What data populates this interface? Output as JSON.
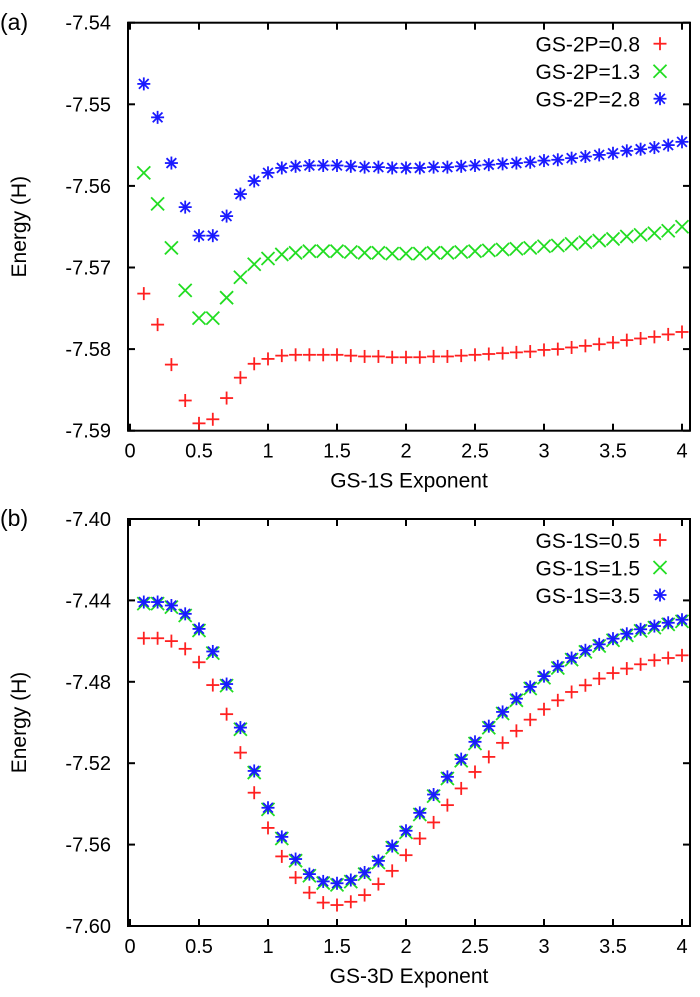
{
  "chart_data": [
    {
      "panel_label": "(a)",
      "type": "scatter",
      "xlabel": "GS-1S Exponent",
      "ylabel": "Energy (H)",
      "xlim": [
        0,
        4.05
      ],
      "ylim": [
        -7.59,
        -7.54
      ],
      "xticks": [
        "0",
        "0.5",
        "1",
        "1.5",
        "2",
        "2.5",
        "3",
        "3.5",
        "4"
      ],
      "xtick_values": [
        0,
        0.5,
        1,
        1.5,
        2,
        2.5,
        3,
        3.5,
        4
      ],
      "yticks": [
        "-7.54",
        "-7.55",
        "-7.56",
        "-7.57",
        "-7.58",
        "-7.59"
      ],
      "ytick_values": [
        -7.54,
        -7.55,
        -7.56,
        -7.57,
        -7.58,
        -7.59
      ],
      "grid": false,
      "legend_position": "top-right",
      "x": [
        0.1,
        0.2,
        0.3,
        0.4,
        0.5,
        0.6,
        0.7,
        0.8,
        0.9,
        1.0,
        1.1,
        1.2,
        1.3,
        1.4,
        1.5,
        1.6,
        1.7,
        1.8,
        1.9,
        2.0,
        2.1,
        2.2,
        2.3,
        2.4,
        2.5,
        2.6,
        2.7,
        2.8,
        2.9,
        3.0,
        3.1,
        3.2,
        3.3,
        3.4,
        3.5,
        3.6,
        3.7,
        3.8,
        3.9,
        4.0
      ],
      "series": [
        {
          "name": "GS-2P=0.8",
          "marker": "plus",
          "color": "#ff2020",
          "values": [
            -7.5732,
            -7.577,
            -7.5819,
            -7.5863,
            -7.5891,
            -7.5886,
            -7.586,
            -7.5835,
            -7.5818,
            -7.5812,
            -7.5808,
            -7.5807,
            -7.5807,
            -7.5807,
            -7.5807,
            -7.5808,
            -7.5809,
            -7.5809,
            -7.581,
            -7.581,
            -7.581,
            -7.5809,
            -7.5809,
            -7.5808,
            -7.5807,
            -7.5806,
            -7.5805,
            -7.5804,
            -7.5803,
            -7.5801,
            -7.58,
            -7.5798,
            -7.5796,
            -7.5794,
            -7.5792,
            -7.5789,
            -7.5787,
            -7.5785,
            -7.5782,
            -7.5779
          ]
        },
        {
          "name": "GS-2P=1.3",
          "marker": "cross",
          "color": "#22dd22",
          "values": [
            -7.5584,
            -7.5622,
            -7.5676,
            -7.5728,
            -7.5762,
            -7.5762,
            -7.5737,
            -7.5712,
            -7.5696,
            -7.5689,
            -7.5684,
            -7.5682,
            -7.568,
            -7.568,
            -7.568,
            -7.5681,
            -7.5682,
            -7.5682,
            -7.5683,
            -7.5683,
            -7.5683,
            -7.5682,
            -7.5682,
            -7.5681,
            -7.568,
            -7.5679,
            -7.5678,
            -7.5677,
            -7.5676,
            -7.5674,
            -7.5673,
            -7.5671,
            -7.5669,
            -7.5667,
            -7.5665,
            -7.5662,
            -7.566,
            -7.5658,
            -7.5655,
            -7.565
          ]
        },
        {
          "name": "GS-2P=2.8",
          "marker": "star",
          "color": "#1a1aff",
          "values": [
            -7.5475,
            -7.5516,
            -7.5572,
            -7.5626,
            -7.5661,
            -7.5661,
            -7.5637,
            -7.561,
            -7.5594,
            -7.5584,
            -7.5578,
            -7.5576,
            -7.5575,
            -7.5575,
            -7.5575,
            -7.5576,
            -7.5577,
            -7.5577,
            -7.5578,
            -7.5578,
            -7.5578,
            -7.5577,
            -7.5577,
            -7.5576,
            -7.5575,
            -7.5574,
            -7.5573,
            -7.5572,
            -7.5571,
            -7.5569,
            -7.5568,
            -7.5566,
            -7.5564,
            -7.5562,
            -7.556,
            -7.5557,
            -7.5555,
            -7.5553,
            -7.555,
            -7.5546
          ]
        }
      ]
    },
    {
      "panel_label": "(b)",
      "type": "scatter",
      "xlabel": "GS-3D Exponent",
      "ylabel": "Energy (H)",
      "xlim": [
        0,
        4.05
      ],
      "ylim": [
        -7.6,
        -7.4
      ],
      "xticks": [
        "0",
        "0.5",
        "1",
        "1.5",
        "2",
        "2.5",
        "3",
        "3.5",
        "4"
      ],
      "xtick_values": [
        0,
        0.5,
        1,
        1.5,
        2,
        2.5,
        3,
        3.5,
        4
      ],
      "yticks": [
        "-7.40",
        "-7.44",
        "-7.48",
        "-7.52",
        "-7.56",
        "-7.60"
      ],
      "ytick_values": [
        -7.4,
        -7.44,
        -7.48,
        -7.52,
        -7.56,
        -7.6
      ],
      "grid": false,
      "legend_position": "top-right",
      "x": [
        0.1,
        0.2,
        0.3,
        0.4,
        0.5,
        0.6,
        0.7,
        0.8,
        0.9,
        1.0,
        1.1,
        1.2,
        1.3,
        1.4,
        1.5,
        1.6,
        1.7,
        1.8,
        1.9,
        2.0,
        2.1,
        2.2,
        2.3,
        2.4,
        2.5,
        2.6,
        2.7,
        2.8,
        2.9,
        3.0,
        3.1,
        3.2,
        3.3,
        3.4,
        3.5,
        3.6,
        3.7,
        3.8,
        3.9,
        4.0
      ],
      "series": [
        {
          "name": "GS-1S=0.5",
          "marker": "plus",
          "color": "#ff2020",
          "values": [
            -7.4586,
            -7.4586,
            -7.46,
            -7.4638,
            -7.4704,
            -7.4816,
            -7.4959,
            -7.5148,
            -7.5345,
            -7.5518,
            -7.5658,
            -7.5762,
            -7.5836,
            -7.5885,
            -7.5897,
            -7.5881,
            -7.5848,
            -7.5794,
            -7.5729,
            -7.5652,
            -7.557,
            -7.5491,
            -7.5406,
            -7.5324,
            -7.5243,
            -7.5169,
            -7.51,
            -7.5041,
            -7.4986,
            -7.4935,
            -7.4891,
            -7.485,
            -7.4817,
            -7.4784,
            -7.4757,
            -7.4735,
            -7.4714,
            -7.4694,
            -7.4683,
            -7.467
          ]
        },
        {
          "name": "GS-1S=1.5",
          "marker": "cross",
          "color": "#22dd22",
          "values": [
            -7.4416,
            -7.4416,
            -7.4433,
            -7.4474,
            -7.4548,
            -7.4659,
            -7.4819,
            -7.5033,
            -7.5246,
            -7.5427,
            -7.557,
            -7.5679,
            -7.5753,
            -7.5789,
            -7.5798,
            -7.5782,
            -7.5745,
            -7.5688,
            -7.5615,
            -7.554,
            -7.5452,
            -7.5362,
            -7.5275,
            -7.5188,
            -7.5103,
            -7.5026,
            -7.4956,
            -7.4891,
            -7.4833,
            -7.478,
            -7.4732,
            -7.4691,
            -7.4653,
            -7.4624,
            -7.4596,
            -7.4572,
            -7.455,
            -7.4534,
            -7.4518,
            -7.4503
          ]
        },
        {
          "name": "GS-1S=3.5",
          "marker": "star",
          "color": "#1a1aff",
          "values": [
            -7.4408,
            -7.4408,
            -7.4425,
            -7.4466,
            -7.454,
            -7.4651,
            -7.4811,
            -7.5025,
            -7.5238,
            -7.5419,
            -7.5562,
            -7.5671,
            -7.5745,
            -7.5781,
            -7.579,
            -7.5774,
            -7.5737,
            -7.568,
            -7.5607,
            -7.5532,
            -7.5444,
            -7.5354,
            -7.5267,
            -7.518,
            -7.5095,
            -7.5018,
            -7.4948,
            -7.4883,
            -7.4825,
            -7.4772,
            -7.4724,
            -7.4683,
            -7.4645,
            -7.4616,
            -7.4588,
            -7.4564,
            -7.4542,
            -7.4526,
            -7.451,
            -7.4495
          ]
        }
      ]
    }
  ]
}
